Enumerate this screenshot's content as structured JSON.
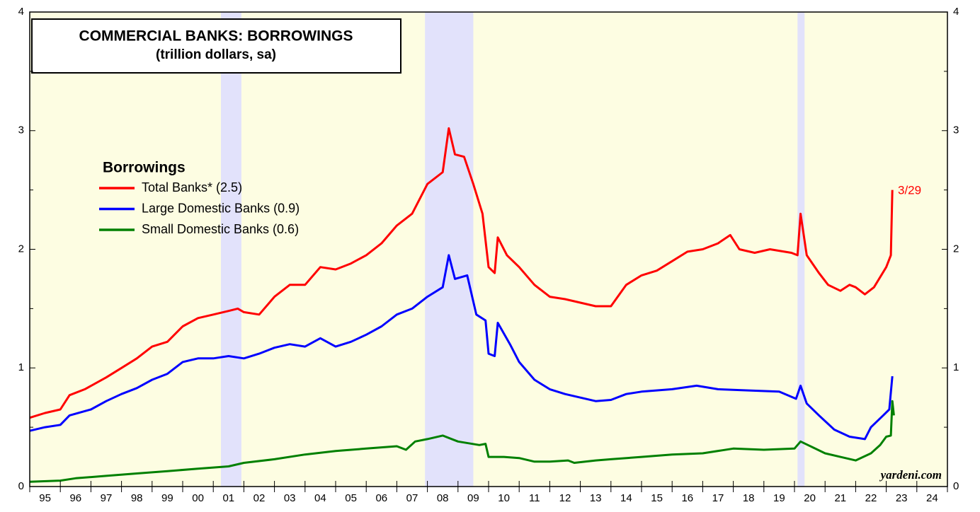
{
  "chart_data": {
    "type": "line",
    "title": "COMMERCIAL BANKS: BORROWINGS",
    "subtitle": "(trillion dollars, sa)",
    "legend_title": "Borrowings",
    "annotations": [
      "3/29",
      "yardeni.com"
    ],
    "xlim": [
      1995,
      2025
    ],
    "xticks": [
      1995,
      1996,
      1997,
      1998,
      1999,
      2000,
      2001,
      2002,
      2003,
      2004,
      2005,
      2006,
      2007,
      2008,
      2009,
      2010,
      2011,
      2012,
      2013,
      2014,
      2015,
      2016,
      2017,
      2018,
      2019,
      2020,
      2021,
      2022,
      2023,
      2024,
      2025
    ],
    "categories": [
      "95",
      "96",
      "97",
      "98",
      "99",
      "00",
      "01",
      "02",
      "03",
      "04",
      "05",
      "06",
      "07",
      "08",
      "09",
      "10",
      "11",
      "12",
      "13",
      "14",
      "15",
      "16",
      "17",
      "18",
      "19",
      "20",
      "21",
      "22",
      "23",
      "24"
    ],
    "ylim": [
      0,
      4
    ],
    "yticks": [
      0,
      1,
      2,
      3,
      4
    ],
    "yminor_ticks": [
      0.5,
      1.5,
      2.5,
      3.5
    ],
    "shaded_periods": [
      [
        2001.25,
        2001.92
      ],
      [
        2007.92,
        2009.5
      ],
      [
        2020.1,
        2020.33
      ]
    ],
    "shade_color": "#e2e2fb",
    "background": "#fdfde2",
    "series": [
      {
        "name": "Total Banks* (2.5)",
        "color": "#ff0000",
        "x": [
          1995.0,
          1995.5,
          1996.0,
          1996.3,
          1996.8,
          1997.5,
          1998.0,
          1998.5,
          1999.0,
          1999.5,
          2000.0,
          2000.5,
          2001.0,
          2001.5,
          2001.8,
          2002.0,
          2002.5,
          2003.0,
          2003.5,
          2004.0,
          2004.5,
          2005.0,
          2005.5,
          2006.0,
          2006.5,
          2007.0,
          2007.5,
          2008.0,
          2008.5,
          2008.7,
          2008.9,
          2009.2,
          2009.5,
          2009.8,
          2010.0,
          2010.2,
          2010.3,
          2010.6,
          2011.0,
          2011.5,
          2012.0,
          2012.5,
          2013.0,
          2013.5,
          2014.0,
          2014.5,
          2015.0,
          2015.5,
          2016.0,
          2016.5,
          2017.0,
          2017.5,
          2017.9,
          2018.2,
          2018.7,
          2019.2,
          2019.9,
          2020.1,
          2020.2,
          2020.4,
          2020.8,
          2021.1,
          2021.5,
          2021.8,
          2022.0,
          2022.3,
          2022.6,
          2023.0,
          2023.15,
          2023.2
        ],
        "values": [
          0.58,
          0.62,
          0.65,
          0.77,
          0.82,
          0.92,
          1.0,
          1.08,
          1.18,
          1.22,
          1.35,
          1.42,
          1.45,
          1.48,
          1.5,
          1.47,
          1.45,
          1.6,
          1.7,
          1.7,
          1.85,
          1.83,
          1.88,
          1.95,
          2.05,
          2.2,
          2.3,
          2.55,
          2.65,
          3.02,
          2.8,
          2.78,
          2.55,
          2.3,
          1.85,
          1.8,
          2.1,
          1.95,
          1.85,
          1.7,
          1.6,
          1.58,
          1.55,
          1.52,
          1.52,
          1.7,
          1.78,
          1.82,
          1.9,
          1.98,
          2.0,
          2.05,
          2.12,
          2.0,
          1.97,
          2.0,
          1.97,
          1.95,
          2.3,
          1.95,
          1.8,
          1.7,
          1.65,
          1.7,
          1.68,
          1.62,
          1.68,
          1.85,
          1.95,
          2.5
        ]
      },
      {
        "name": "Large Domestic Banks (0.9)",
        "color": "#0000ff",
        "x": [
          1995.0,
          1995.5,
          1996.0,
          1996.3,
          1997.0,
          1997.5,
          1998.0,
          1998.5,
          1999.0,
          1999.5,
          2000.0,
          2000.5,
          2001.0,
          2001.5,
          2002.0,
          2002.5,
          2003.0,
          2003.5,
          2004.0,
          2004.5,
          2005.0,
          2005.5,
          2006.0,
          2006.5,
          2007.0,
          2007.5,
          2008.0,
          2008.5,
          2008.7,
          2008.9,
          2009.3,
          2009.6,
          2009.9,
          2010.0,
          2010.2,
          2010.3,
          2010.7,
          2011.0,
          2011.5,
          2012.0,
          2012.5,
          2013.0,
          2013.5,
          2014.0,
          2014.5,
          2015.0,
          2016.0,
          2016.8,
          2017.5,
          2018.5,
          2019.5,
          2020.05,
          2020.2,
          2020.4,
          2020.8,
          2021.3,
          2021.8,
          2022.3,
          2022.5,
          2022.9,
          2023.1,
          2023.2
        ],
        "values": [
          0.47,
          0.5,
          0.52,
          0.6,
          0.65,
          0.72,
          0.78,
          0.83,
          0.9,
          0.95,
          1.05,
          1.08,
          1.08,
          1.1,
          1.08,
          1.12,
          1.17,
          1.2,
          1.18,
          1.25,
          1.18,
          1.22,
          1.28,
          1.35,
          1.45,
          1.5,
          1.6,
          1.68,
          1.95,
          1.75,
          1.78,
          1.45,
          1.4,
          1.12,
          1.1,
          1.38,
          1.2,
          1.05,
          0.9,
          0.82,
          0.78,
          0.75,
          0.72,
          0.73,
          0.78,
          0.8,
          0.82,
          0.85,
          0.82,
          0.81,
          0.8,
          0.74,
          0.85,
          0.7,
          0.6,
          0.48,
          0.42,
          0.4,
          0.5,
          0.6,
          0.65,
          0.93
        ]
      },
      {
        "name": "Small Domestic Banks (0.6)",
        "color": "#008000",
        "x": [
          1995.0,
          1996.0,
          1996.5,
          1997.5,
          1998.5,
          1999.5,
          2000.5,
          2001.5,
          2002.0,
          2003.0,
          2004.0,
          2005.0,
          2006.0,
          2007.0,
          2007.3,
          2007.6,
          2008.0,
          2008.5,
          2009.0,
          2009.7,
          2009.9,
          2010.0,
          2010.5,
          2011.0,
          2011.5,
          2012.0,
          2012.6,
          2012.8,
          2013.5,
          2014.0,
          2015.0,
          2016.0,
          2017.0,
          2018.0,
          2019.0,
          2020.0,
          2020.2,
          2020.6,
          2021.0,
          2021.5,
          2022.0,
          2022.5,
          2022.8,
          2023.0,
          2023.15,
          2023.2,
          2023.25
        ],
        "values": [
          0.04,
          0.05,
          0.07,
          0.09,
          0.11,
          0.13,
          0.15,
          0.17,
          0.2,
          0.23,
          0.27,
          0.3,
          0.32,
          0.34,
          0.31,
          0.38,
          0.4,
          0.43,
          0.38,
          0.35,
          0.36,
          0.25,
          0.25,
          0.24,
          0.21,
          0.21,
          0.22,
          0.2,
          0.22,
          0.23,
          0.25,
          0.27,
          0.28,
          0.32,
          0.31,
          0.32,
          0.38,
          0.33,
          0.28,
          0.25,
          0.22,
          0.28,
          0.35,
          0.42,
          0.43,
          0.72,
          0.6
        ]
      }
    ]
  }
}
